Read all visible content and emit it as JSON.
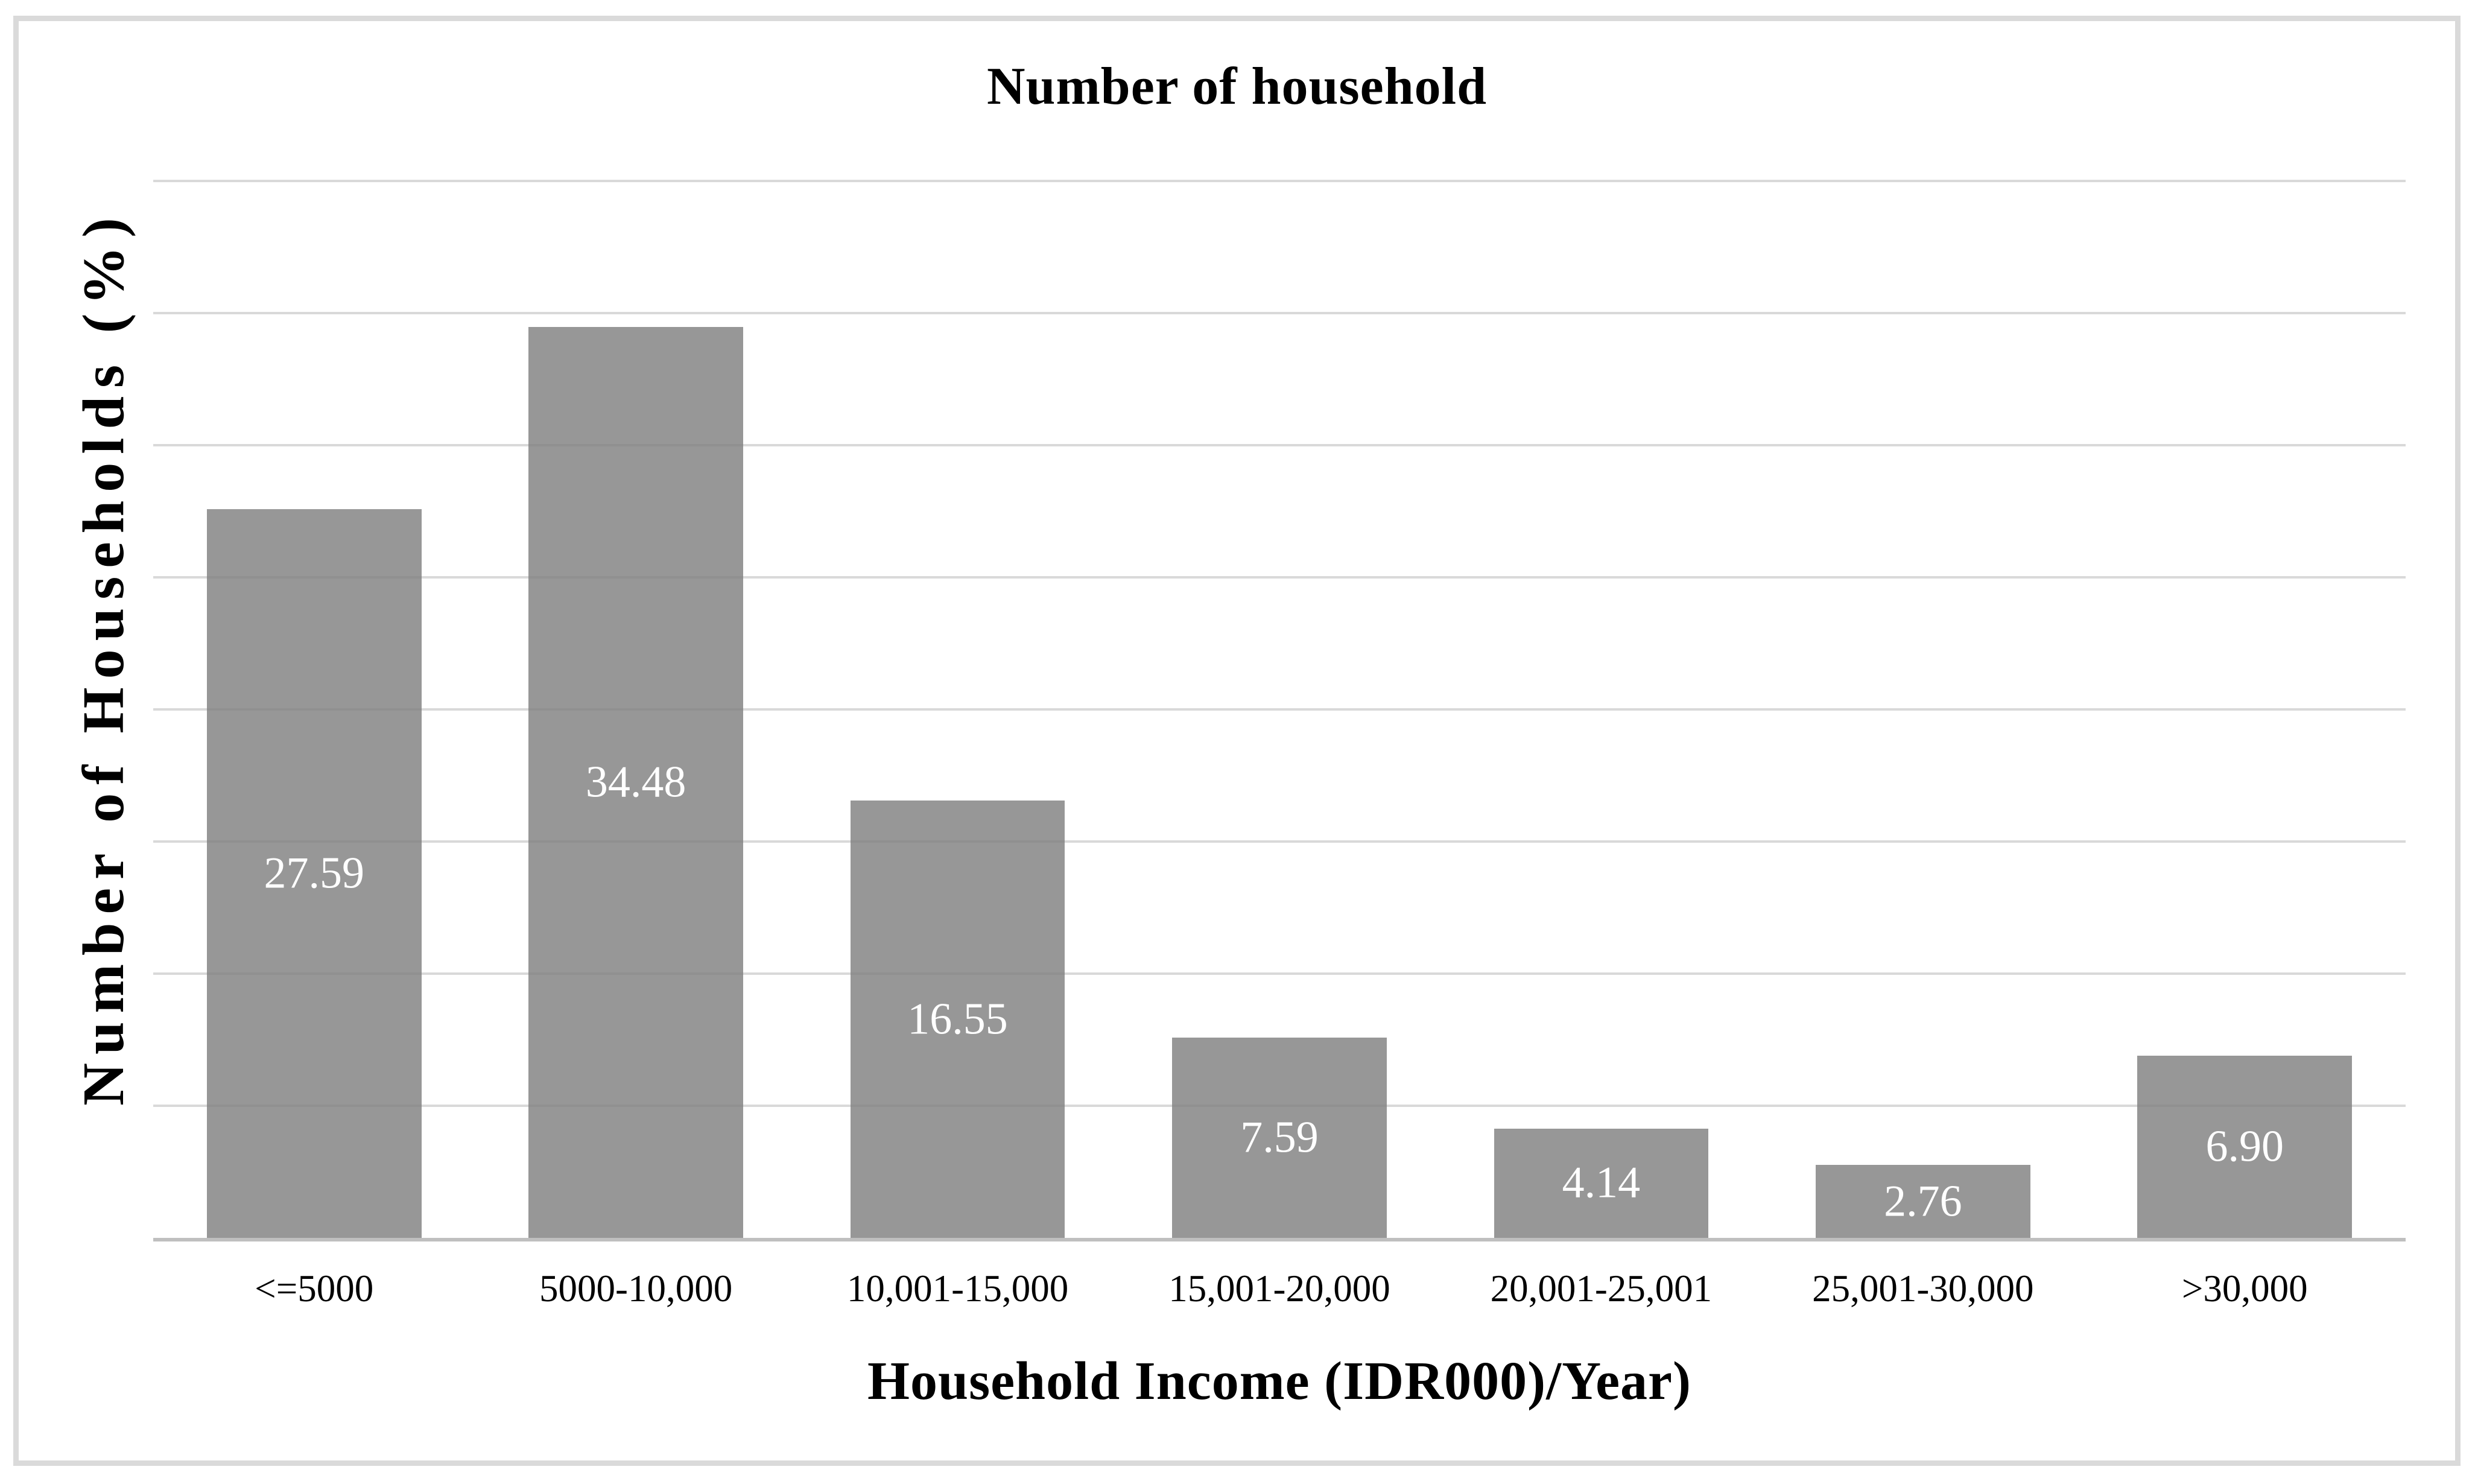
{
  "title": "Number of household",
  "colors": {
    "bar_fill": "rgba(128,128,128,0.82)",
    "bar_fill_flat": "#979797",
    "gridline": "#D9D9D9",
    "axis_line": "#BFBFBF",
    "frame_border": "#DADADA",
    "text": "#000000",
    "bar_label_text": "#FFFFFF",
    "background": "#FFFFFF"
  },
  "chart_data": {
    "type": "bar",
    "title": "Number of household",
    "xlabel": "Household Income (IDR000)/Year)",
    "ylabel": "Number of Households (%)",
    "categories": [
      "<=5000",
      "5000-10,000",
      "10,001-15,000",
      "15,001-20,000",
      "20,001-25,001",
      "25,001-30,000",
      ">30,000"
    ],
    "values": [
      27.59,
      34.48,
      16.55,
      7.59,
      4.14,
      2.76,
      6.9
    ],
    "value_labels": [
      "27.59",
      "34.48",
      "16.55",
      "7.59",
      "4.14",
      "2.76",
      "6.90"
    ],
    "ylim": [
      0,
      40
    ],
    "gridline_step": 5,
    "y_tick_labels_visible": false,
    "grid": true,
    "legend": false,
    "value_label_position": "center-of-bar",
    "value_label_color": "#FFFFFF"
  }
}
